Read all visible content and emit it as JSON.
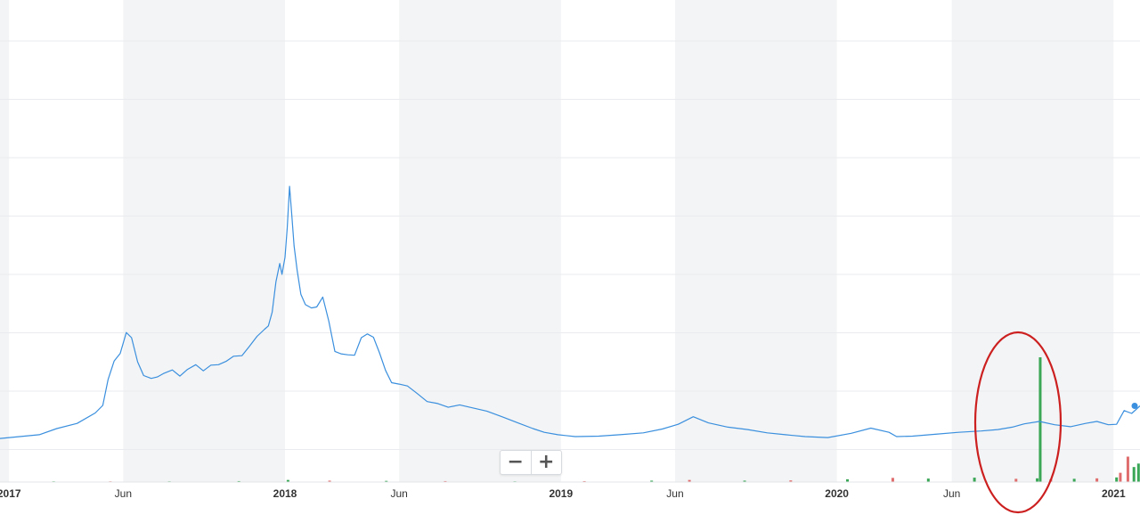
{
  "chart_data": {
    "type": "line",
    "title": "",
    "xlabel": "",
    "ylabel": "",
    "grid": true,
    "legend": "none",
    "colors": {
      "line": "#3a8fde",
      "band": "#f3f4f5",
      "volume_up": "#3aa757",
      "volume_down": "#e06d6d",
      "annotation": "#cc1f1f"
    },
    "x_ticks": [
      {
        "label": "2017",
        "date": "2017-01-01",
        "major": true
      },
      {
        "label": "Jun",
        "date": "2017-06-01",
        "major": false
      },
      {
        "label": "2018",
        "date": "2018-01-01",
        "major": true
      },
      {
        "label": "Jun",
        "date": "2018-06-01",
        "major": false
      },
      {
        "label": "2019",
        "date": "2019-01-01",
        "major": true
      },
      {
        "label": "Jun",
        "date": "2019-06-01",
        "major": false
      },
      {
        "label": "2020",
        "date": "2020-01-01",
        "major": true
      },
      {
        "label": "Jun",
        "date": "2020-06-01",
        "major": false
      },
      {
        "label": "2021",
        "date": "2021-01-01",
        "major": true
      }
    ],
    "xlim": [
      "2016-12-20",
      "2021-02-05"
    ],
    "ylim": [
      0,
      100
    ],
    "series": [
      {
        "x": [
          "2016-12-20",
          "2017-01-15",
          "2017-02-10",
          "2017-03-05",
          "2017-04-01",
          "2017-04-25",
          "2017-05-05",
          "2017-05-12",
          "2017-05-20",
          "2017-05-28",
          "2017-06-05",
          "2017-06-12",
          "2017-06-20",
          "2017-06-28",
          "2017-07-08",
          "2017-07-16",
          "2017-07-25",
          "2017-08-05",
          "2017-08-15",
          "2017-08-25",
          "2017-09-05",
          "2017-09-15",
          "2017-09-25",
          "2017-10-05",
          "2017-10-15",
          "2017-10-25",
          "2017-11-05",
          "2017-11-15",
          "2017-11-25",
          "2017-12-05",
          "2017-12-10",
          "2017-12-15",
          "2017-12-20",
          "2017-12-25",
          "2017-12-28",
          "2018-01-01",
          "2018-01-04",
          "2018-01-07",
          "2018-01-10",
          "2018-01-13",
          "2018-01-17",
          "2018-01-22",
          "2018-01-28",
          "2018-02-05",
          "2018-02-12",
          "2018-02-20",
          "2018-02-28",
          "2018-03-08",
          "2018-03-16",
          "2018-03-25",
          "2018-04-03",
          "2018-04-12",
          "2018-04-20",
          "2018-04-28",
          "2018-05-06",
          "2018-05-14",
          "2018-05-22",
          "2018-06-01",
          "2018-06-12",
          "2018-06-25",
          "2018-07-08",
          "2018-07-22",
          "2018-08-05",
          "2018-08-20",
          "2018-09-05",
          "2018-09-25",
          "2018-10-15",
          "2018-11-05",
          "2018-11-25",
          "2018-12-10",
          "2018-12-28",
          "2019-01-20",
          "2019-02-20",
          "2019-03-20",
          "2019-04-20",
          "2019-05-15",
          "2019-06-05",
          "2019-06-25",
          "2019-07-15",
          "2019-08-10",
          "2019-09-05",
          "2019-10-01",
          "2019-10-25",
          "2019-11-20",
          "2019-12-20",
          "2020-01-20",
          "2020-02-15",
          "2020-03-10",
          "2020-03-20",
          "2020-04-10",
          "2020-05-10",
          "2020-06-10",
          "2020-07-10",
          "2020-08-01",
          "2020-08-20",
          "2020-09-05",
          "2020-09-25",
          "2020-10-15",
          "2020-11-05",
          "2020-11-25",
          "2020-12-10",
          "2020-12-25",
          "2021-01-05",
          "2021-01-15",
          "2021-01-25",
          "2021-02-05"
        ],
        "values": [
          9.2,
          9.6,
          10.0,
          11.3,
          12.4,
          14.6,
          16.2,
          21.7,
          25.6,
          27.2,
          31.6,
          30.5,
          25.4,
          22.5,
          21.9,
          22.2,
          23.0,
          23.7,
          22.4,
          23.8,
          24.8,
          23.5,
          24.7,
          24.8,
          25.5,
          26.6,
          26.7,
          28.7,
          30.8,
          32.3,
          33.0,
          35.9,
          42.3,
          46.2,
          43.9,
          47.5,
          53.7,
          62.5,
          56.5,
          49.9,
          44.8,
          39.7,
          37.5,
          36.8,
          37.0,
          39.1,
          34.0,
          27.6,
          27.1,
          26.9,
          26.8,
          30.5,
          31.3,
          30.6,
          27.3,
          23.6,
          21.0,
          20.7,
          20.3,
          18.7,
          17.0,
          16.6,
          15.8,
          16.3,
          15.7,
          15.0,
          13.8,
          12.5,
          11.3,
          10.5,
          10.0,
          9.6,
          9.7,
          10.0,
          10.4,
          11.2,
          12.2,
          13.8,
          12.5,
          11.6,
          11.1,
          10.4,
          10.0,
          9.6,
          9.4,
          10.3,
          11.4,
          10.5,
          9.6,
          9.7,
          10.1,
          10.5,
          10.8,
          11.1,
          11.6,
          12.3,
          12.8,
          12.1,
          11.7,
          12.4,
          12.8,
          12.1,
          12.2,
          15.1,
          14.5,
          16.1
        ]
      }
    ],
    "volume": {
      "x": [
        "2017-03-01",
        "2017-05-15",
        "2017-08-01",
        "2017-11-01",
        "2018-01-05",
        "2018-03-01",
        "2018-05-15",
        "2018-08-01",
        "2018-11-01",
        "2019-02-01",
        "2019-05-01",
        "2019-06-20",
        "2019-09-01",
        "2019-11-01",
        "2020-01-15",
        "2020-03-15",
        "2020-05-01",
        "2020-07-01",
        "2020-08-25",
        "2020-09-22",
        "2020-09-26",
        "2020-10-10",
        "2020-11-10",
        "2020-12-10",
        "2021-01-05",
        "2021-01-10",
        "2021-01-20",
        "2021-01-28",
        "2021-02-03"
      ],
      "values": [
        0.3,
        0.3,
        0.3,
        0.4,
        0.9,
        0.6,
        0.5,
        0.4,
        0.3,
        0.4,
        0.6,
        0.9,
        0.6,
        0.7,
        1.2,
        1.8,
        1.5,
        1.9,
        1.4,
        1.6,
        54.0,
        1.2,
        1.4,
        1.6,
        2.0,
        4.0,
        11.0,
        6.5,
        8.0
      ],
      "direction": [
        "up",
        "down",
        "up",
        "up",
        "up",
        "down",
        "up",
        "down",
        "up",
        "down",
        "up",
        "down",
        "up",
        "down",
        "up",
        "down",
        "up",
        "up",
        "down",
        "up",
        "up",
        "down",
        "up",
        "down",
        "up",
        "down",
        "down",
        "up",
        "up"
      ]
    },
    "last_point": {
      "date": "2021-02-05",
      "value": 16.1
    }
  },
  "zoom": {
    "minus_label": "−",
    "plus_label": "+"
  }
}
